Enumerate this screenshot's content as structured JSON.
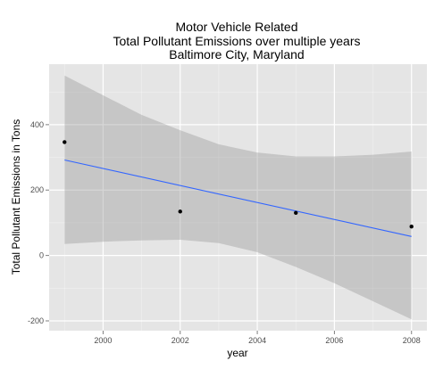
{
  "chart_data": {
    "type": "scatter",
    "title_lines": [
      "Motor Vehicle Related",
      "Total Pollutant Emissions over multiple years",
      "Baltimore City, Maryland"
    ],
    "xlabel": "year",
    "ylabel": "Total Pollutant Emissions in Tons",
    "xlim": [
      1998.6,
      2008.4
    ],
    "ylim": [
      -230,
      585
    ],
    "x_ticks": [
      2000,
      2002,
      2004,
      2006,
      2008
    ],
    "x_tick_labels": [
      "2000",
      "2002",
      "2004",
      "2006",
      "2008"
    ],
    "y_ticks": [
      -200,
      0,
      200,
      400
    ],
    "y_tick_labels": [
      "-200",
      "0",
      "200",
      "400"
    ],
    "grid": true,
    "points": [
      {
        "x": 1999,
        "y": 346.8
      },
      {
        "x": 2002,
        "y": 134.3
      },
      {
        "x": 2005,
        "y": 130.4
      },
      {
        "x": 2008,
        "y": 88.3
      }
    ],
    "trend_line": {
      "method": "linear regression",
      "x": [
        1999,
        2008
      ],
      "y": [
        292,
        58
      ]
    },
    "confidence_band": {
      "x": [
        1999,
        2000,
        2001,
        2002,
        2003,
        2004,
        2005,
        2006,
        2007,
        2008
      ],
      "lower": [
        35,
        42,
        46,
        48,
        38,
        10,
        -35,
        -85,
        -140,
        -195
      ],
      "upper": [
        550,
        490,
        430,
        383,
        340,
        315,
        303,
        303,
        308,
        318
      ]
    },
    "colors": {
      "panel_background": "#e5e5e5",
      "grid": "#ffffff",
      "points": "#000000",
      "trend_line": "#3366ff",
      "confidence_band": "#999999",
      "tick_label": "#4d4d4d"
    }
  }
}
